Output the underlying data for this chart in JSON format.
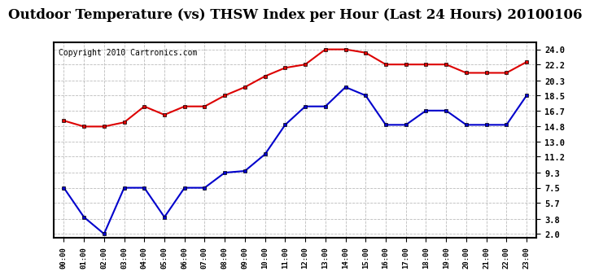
{
  "title": "Outdoor Temperature (vs) THSW Index per Hour (Last 24 Hours) 20100106",
  "copyright": "Copyright 2010 Cartronics.com",
  "hours": [
    "00:00",
    "01:00",
    "02:00",
    "03:00",
    "04:00",
    "05:00",
    "06:00",
    "07:00",
    "08:00",
    "09:00",
    "10:00",
    "11:00",
    "12:00",
    "13:00",
    "14:00",
    "15:00",
    "16:00",
    "17:00",
    "18:00",
    "19:00",
    "20:00",
    "21:00",
    "22:00",
    "23:00"
  ],
  "red_data": [
    15.5,
    14.8,
    14.8,
    15.3,
    17.2,
    16.2,
    17.2,
    17.2,
    18.5,
    19.5,
    20.8,
    21.8,
    22.2,
    24.0,
    24.0,
    23.6,
    22.2,
    22.2,
    22.2,
    22.2,
    21.2,
    21.2,
    21.2,
    22.5
  ],
  "blue_data": [
    7.5,
    4.0,
    2.0,
    7.5,
    7.5,
    4.0,
    7.5,
    7.5,
    9.3,
    9.5,
    11.5,
    15.0,
    17.2,
    17.2,
    19.5,
    18.5,
    15.0,
    15.0,
    16.7,
    16.7,
    15.0,
    15.0,
    15.0,
    18.5
  ],
  "red_color": "#dd0000",
  "blue_color": "#0000cc",
  "bg_color": "#ffffff",
  "grid_color": "#bbbbbb",
  "yticks": [
    2.0,
    3.8,
    5.7,
    7.5,
    9.3,
    11.2,
    13.0,
    14.8,
    16.7,
    18.5,
    20.3,
    22.2,
    24.0
  ],
  "title_fontsize": 12,
  "copyright_fontsize": 7,
  "markersize": 3.5,
  "linewidth": 1.5
}
